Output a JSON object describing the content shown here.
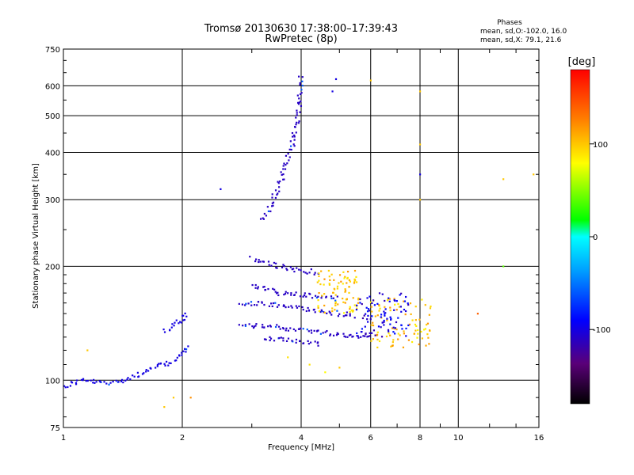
{
  "chart_data": {
    "type": "scatter",
    "title": "Tromsø 20130630 17:38:00–17:39:43",
    "subtitle": "RwPretec (8p)",
    "xlabel": "Frequency [MHz]",
    "ylabel": "Stationary phase Virtual Height [km]",
    "x_scale": "log",
    "y_scale": "log",
    "xlim": [
      1,
      16
    ],
    "ylim": [
      75,
      750
    ],
    "x_ticks": [
      1,
      2,
      4,
      6,
      8,
      10,
      16
    ],
    "y_ticks": [
      75,
      100,
      200,
      300,
      400,
      500,
      600,
      750
    ],
    "grid": true,
    "colorbar": {
      "label": "[deg]",
      "range": [
        -180,
        180
      ],
      "ticks": [
        100,
        0,
        -100
      ]
    },
    "stats": {
      "header": "Phases",
      "line_o": "mean, sd,O:-102.0, 16.0",
      "line_x": "mean, sd,X: 79.1, 21.6"
    },
    "traces": [
      {
        "type": "line",
        "x": [
          1.0,
          1.1,
          1.3,
          1.5,
          1.7,
          1.8,
          1.9,
          2.0,
          2.05
        ],
        "y": [
          96,
          100,
          98,
          102,
          108,
          110,
          112,
          118,
          122
        ],
        "phase": -100
      },
      {
        "type": "line",
        "x": [
          1.8,
          1.9,
          2.0,
          2.05
        ],
        "y": [
          135,
          140,
          145,
          150
        ],
        "phase": -100
      },
      {
        "type": "line",
        "x": [
          3.2,
          3.4,
          3.6,
          3.8,
          3.95,
          4.0
        ],
        "y": [
          265,
          300,
          350,
          420,
          520,
          640
        ],
        "phase": -110
      },
      {
        "type": "line",
        "x": [
          3.0,
          3.5,
          4.0,
          4.5
        ],
        "y": [
          210,
          200,
          195,
          192
        ],
        "phase": -110
      },
      {
        "type": "line",
        "x": [
          3.0,
          3.5,
          4.0,
          4.5,
          5.0
        ],
        "y": [
          178,
          170,
          168,
          166,
          164
        ],
        "phase": -110
      },
      {
        "type": "line",
        "x": [
          2.8,
          3.5,
          4.0,
          4.5,
          5.0,
          5.5
        ],
        "y": [
          160,
          158,
          155,
          152,
          150,
          148
        ],
        "phase": -110
      },
      {
        "type": "line",
        "x": [
          2.8,
          3.5,
          4.0,
          4.5,
          5.0,
          6.0
        ],
        "y": [
          140,
          138,
          136,
          134,
          132,
          130
        ],
        "phase": -110
      },
      {
        "type": "line",
        "x": [
          3.2,
          3.6,
          4.0,
          4.5
        ],
        "y": [
          130,
          128,
          126,
          124
        ],
        "phase": -110
      },
      {
        "type": "cluster",
        "x": [
          4.4,
          5.6
        ],
        "y": [
          150,
          195
        ],
        "phase": 100
      },
      {
        "type": "cluster",
        "x": [
          6.0,
          8.6
        ],
        "y": [
          122,
          165
        ],
        "phase": 100
      },
      {
        "type": "cluster",
        "x": [
          5.5,
          7.5
        ],
        "y": [
          130,
          170
        ],
        "phase": -100
      }
    ],
    "isolated_points": [
      {
        "x": 2.5,
        "y": 320,
        "phase": -100
      },
      {
        "x": 4.9,
        "y": 625,
        "phase": -100
      },
      {
        "x": 6.0,
        "y": 620,
        "phase": 100
      },
      {
        "x": 4.8,
        "y": 580,
        "phase": -100
      },
      {
        "x": 8.0,
        "y": 580,
        "phase": 100
      },
      {
        "x": 8.0,
        "y": 420,
        "phase": 100
      },
      {
        "x": 8.0,
        "y": 350,
        "phase": -100
      },
      {
        "x": 8.0,
        "y": 300,
        "phase": 100
      },
      {
        "x": 11.2,
        "y": 150,
        "phase": 140
      },
      {
        "x": 13.0,
        "y": 340,
        "phase": 100
      },
      {
        "x": 13.0,
        "y": 200,
        "phase": 40
      },
      {
        "x": 15.5,
        "y": 350,
        "phase": 100
      },
      {
        "x": 1.9,
        "y": 90,
        "phase": 100
      },
      {
        "x": 1.8,
        "y": 85,
        "phase": 100
      },
      {
        "x": 2.1,
        "y": 90,
        "phase": 120
      },
      {
        "x": 1.15,
        "y": 120,
        "phase": 100
      },
      {
        "x": 4.2,
        "y": 110,
        "phase": 90
      },
      {
        "x": 4.6,
        "y": 105,
        "phase": 80
      },
      {
        "x": 5.0,
        "y": 108,
        "phase": 100
      },
      {
        "x": 3.7,
        "y": 115,
        "phase": 90
      }
    ]
  }
}
